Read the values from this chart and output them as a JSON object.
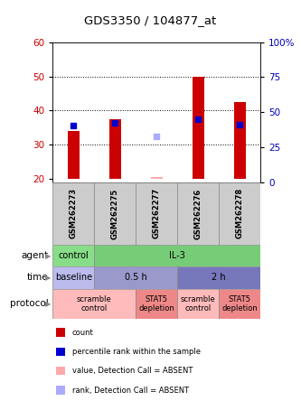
{
  "title": "GDS3350 / 104877_at",
  "samples": [
    "GSM262273",
    "GSM262275",
    "GSM262277",
    "GSM262276",
    "GSM262278"
  ],
  "bar_values_red": [
    34,
    37.5,
    null,
    50,
    42.5
  ],
  "bar_values_blue_marker": [
    35.5,
    36.5,
    null,
    37.5,
    36.0
  ],
  "bar_absent_red": [
    null,
    null,
    20.5,
    null,
    null
  ],
  "bar_absent_blue": [
    null,
    null,
    32.5,
    null,
    null
  ],
  "ylim_left": [
    19,
    60
  ],
  "ylim_right": [
    0,
    100
  ],
  "yticks_left": [
    20,
    30,
    40,
    50,
    60
  ],
  "yticks_right": [
    0,
    25,
    50,
    75,
    100
  ],
  "ytick_labels_right": [
    "0",
    "25",
    "50",
    "75",
    "100%"
  ],
  "bar_color_red": "#cc0000",
  "bar_color_blue": "#0000cc",
  "bar_color_absent_red": "#ffaaaa",
  "bar_color_absent_blue": "#aaaaff",
  "bar_bottom": 20,
  "agent_cells": [
    {
      "text": "control",
      "colspan": 1,
      "color": "#88dd88"
    },
    {
      "text": "IL-3",
      "colspan": 4,
      "color": "#77cc77"
    }
  ],
  "time_cells": [
    {
      "text": "baseline",
      "colspan": 1,
      "color": "#bbbbee"
    },
    {
      "text": "0.5 h",
      "colspan": 2,
      "color": "#9999cc"
    },
    {
      "text": "2 h",
      "colspan": 2,
      "color": "#7777bb"
    }
  ],
  "protocol_cells": [
    {
      "text": "scramble\ncontrol",
      "colspan": 2,
      "color": "#ffbbbb"
    },
    {
      "text": "STAT5\ndepletion",
      "colspan": 1,
      "color": "#ee8888"
    },
    {
      "text": "scramble\ncontrol",
      "colspan": 1,
      "color": "#ffbbbb"
    },
    {
      "text": "STAT5\ndepletion",
      "colspan": 1,
      "color": "#ee8888"
    }
  ],
  "row_labels": [
    "agent",
    "time",
    "protocol"
  ],
  "legend_items": [
    {
      "color": "#cc0000",
      "label": "count"
    },
    {
      "color": "#0000cc",
      "label": "percentile rank within the sample"
    },
    {
      "color": "#ffaaaa",
      "label": "value, Detection Call = ABSENT"
    },
    {
      "color": "#aaaaff",
      "label": "rank, Detection Call = ABSENT"
    }
  ],
  "axis_color_left": "#cc0000",
  "axis_color_right": "#0000bb"
}
